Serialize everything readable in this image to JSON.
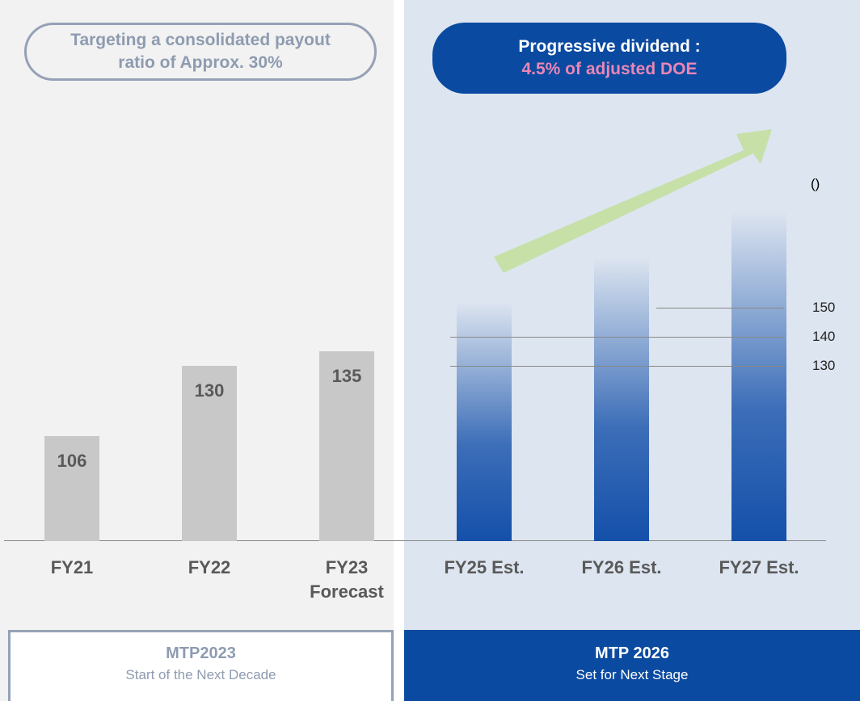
{
  "chart_data": {
    "type": "bar",
    "left_header": "Targeting a consolidated payout ratio of Approx. 30%",
    "right_header": {
      "title": "Progressive dividend :",
      "subtitle": "4.5% of adjusted DOE"
    },
    "unit": "()",
    "categories": [
      "FY21",
      "FY22",
      "FY23 Forecast",
      "FY25 Est.",
      "FY26 Est.",
      "FY27 Est."
    ],
    "values": [
      106,
      130,
      135,
      152,
      167,
      183
    ],
    "estimated": [
      false,
      false,
      false,
      true,
      true,
      true
    ],
    "actual_color": "#c8c8c8",
    "estimate_color": "#1450aa",
    "ylim": [
      70,
      200
    ],
    "reference_lines": [
      150,
      140,
      130
    ],
    "left_footer": {
      "title": "MTP2023",
      "subtitle": "Start of the Next Decade"
    },
    "right_footer": {
      "title": "MTP 2026",
      "subtitle": "Set for Next Stage"
    }
  }
}
